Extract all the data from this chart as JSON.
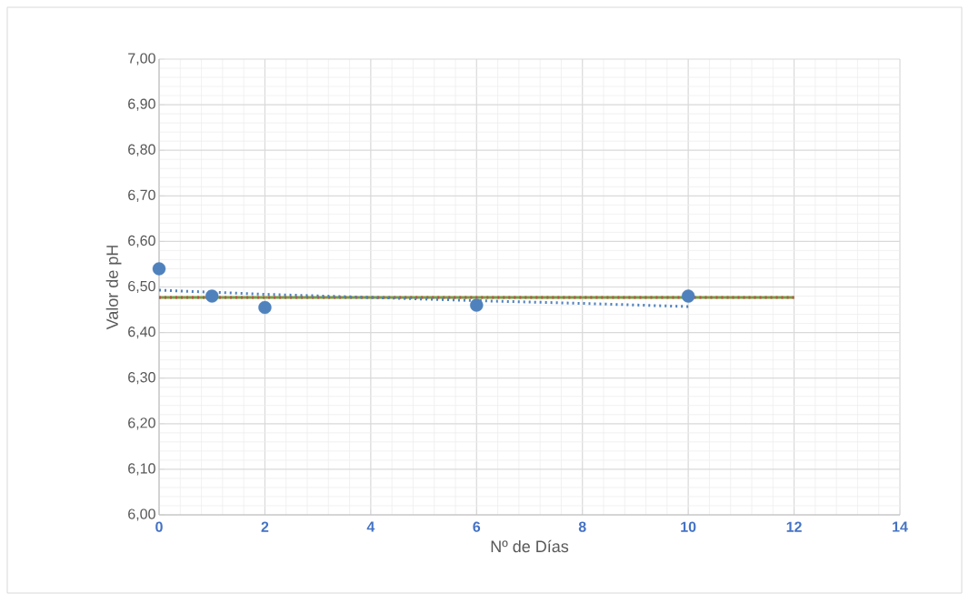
{
  "chart_data": {
    "type": "scatter",
    "xlabel": "Nº de Días",
    "ylabel": "Valor de pH",
    "xlim": [
      0,
      14
    ],
    "xticks": [
      0,
      2,
      4,
      6,
      8,
      10,
      12,
      14
    ],
    "ylim": [
      6,
      7
    ],
    "yticks": [
      {
        "value": 6,
        "label": "6,00"
      },
      {
        "value": 6.1,
        "label": "6,10"
      },
      {
        "value": 6.2,
        "label": "6,20"
      },
      {
        "value": 6.3,
        "label": "6,30"
      },
      {
        "value": 6.4,
        "label": "6,40"
      },
      {
        "value": 6.5,
        "label": "6,50"
      },
      {
        "value": 6.6,
        "label": "6,60"
      },
      {
        "value": 6.7,
        "label": "6,70"
      },
      {
        "value": 6.8,
        "label": "6,80"
      },
      {
        "value": 6.9,
        "label": "6,90"
      },
      {
        "value": 7,
        "label": "7,00"
      }
    ],
    "grid": true,
    "series": [
      {
        "type": "line",
        "color": "#77a040",
        "line_style": "solid",
        "marker": "none",
        "x": [
          0,
          12
        ],
        "values": [
          6.477,
          6.477
        ]
      },
      {
        "type": "line",
        "color": "#c0504d",
        "line_style": "dotted",
        "marker": "none",
        "x": [
          0,
          12
        ],
        "values": [
          6.477,
          6.477
        ]
      },
      {
        "type": "line",
        "color": "#4f81bd",
        "line_style": "dotted",
        "marker": "none",
        "x": [
          0,
          2,
          4,
          6,
          8,
          10
        ],
        "values": [
          6.493,
          6.484,
          6.477,
          6.47,
          6.464,
          6.457
        ]
      },
      {
        "color": "#4f81bd",
        "marker": "circle",
        "x": [
          0,
          1,
          2,
          6,
          10
        ],
        "values": [
          6.54,
          6.48,
          6.455,
          6.46,
          6.48
        ]
      }
    ]
  }
}
